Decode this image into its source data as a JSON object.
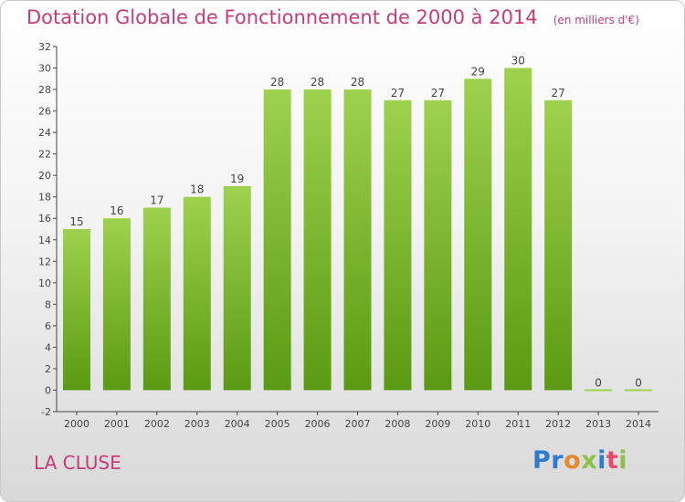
{
  "header": {
    "title": "Dotation Globale de Fonctionnement de 2000 à 2014",
    "unit": "(en milliers d'€)"
  },
  "footer": {
    "commune": "LA CLUSE",
    "logo_text": "Proxiti"
  },
  "colors": {
    "accent": "#c83b7a",
    "bar_top": "#9ed14e",
    "bar_bottom": "#5a9a12"
  },
  "chart_data": {
    "type": "bar",
    "categories": [
      "2000",
      "2001",
      "2002",
      "2003",
      "2004",
      "2005",
      "2006",
      "2007",
      "2008",
      "2009",
      "2010",
      "2011",
      "2012",
      "2013",
      "2014"
    ],
    "values": [
      15,
      16,
      17,
      18,
      19,
      28,
      28,
      28,
      27,
      27,
      29,
      30,
      27,
      0,
      0
    ],
    "ylim": [
      -2,
      32
    ],
    "yticks": [
      -2,
      0,
      2,
      4,
      6,
      8,
      10,
      12,
      14,
      16,
      18,
      20,
      22,
      24,
      26,
      28,
      30,
      32
    ],
    "grid": false,
    "legend": "none"
  }
}
